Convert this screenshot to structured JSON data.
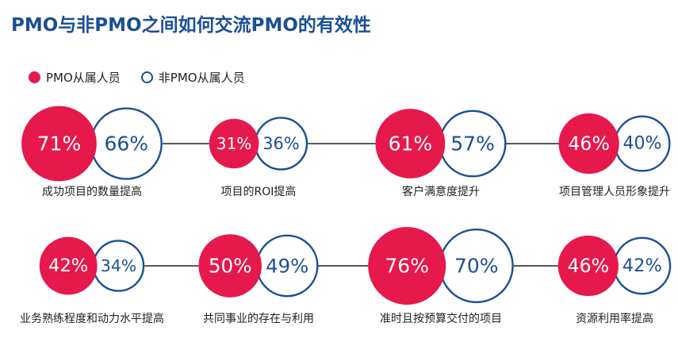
{
  "title": "PMO与非PMO之间如何交流PMO的有效性",
  "colors": {
    "pmo": "#e5194b",
    "non_pmo": "#1a4f96",
    "title": "#1a4f96"
  },
  "legend": {
    "pmo": "PMO从属人员",
    "non_pmo": "非PMO从属人员"
  },
  "chart_data": {
    "type": "bubble-pair",
    "title": "PMO与非PMO之间如何交流PMO的有效性",
    "series": [
      {
        "name": "PMO从属人员",
        "values": [
          71,
          31,
          61,
          46,
          42,
          50,
          76,
          46
        ]
      },
      {
        "name": "非PMO从属人员",
        "values": [
          66,
          36,
          57,
          40,
          34,
          49,
          70,
          42
        ]
      }
    ],
    "categories": [
      "成功项目的数量提高",
      "项目的ROI提高",
      "客户满意度提升",
      "项目管理人员形象提升",
      "业务熟练程度和动力水平提高",
      "共同事业的存在与利用",
      "准时且按预算交付的项目",
      "资源利用率提高"
    ],
    "pmo_labels": [
      "71%",
      "31%",
      "61%",
      "46%",
      "42%",
      "50%",
      "76%",
      "46%"
    ],
    "non_pmo_labels": [
      "66%",
      "36%",
      "57%",
      "40%",
      "34%",
      "49%",
      "70%",
      "42%"
    ]
  }
}
